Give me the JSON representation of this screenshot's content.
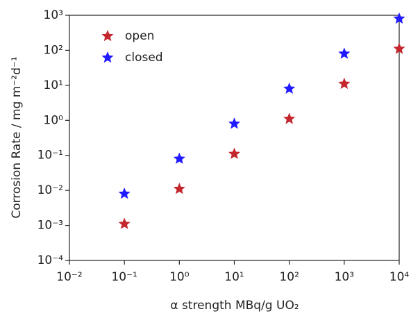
{
  "chart_data": {
    "type": "scatter",
    "xlabel": "α strength  MBq/g UO₂",
    "ylabel": "Corrosion Rate / mg m⁻²d⁻¹",
    "xscale": "log",
    "yscale": "log",
    "xlim": [
      0.01,
      10000
    ],
    "ylim": [
      0.0001,
      1000
    ],
    "xticks": [
      {
        "value": 0.01,
        "label": "10⁻²"
      },
      {
        "value": 0.1,
        "label": "10⁻¹"
      },
      {
        "value": 1,
        "label": "10⁰"
      },
      {
        "value": 10,
        "label": "10¹"
      },
      {
        "value": 100,
        "label": "10²"
      },
      {
        "value": 1000,
        "label": "10³"
      },
      {
        "value": 10000,
        "label": "10⁴"
      }
    ],
    "yticks": [
      {
        "value": 0.0001,
        "label": "10⁻⁴"
      },
      {
        "value": 0.001,
        "label": "10⁻³"
      },
      {
        "value": 0.01,
        "label": "10⁻²"
      },
      {
        "value": 0.1,
        "label": "10⁻¹"
      },
      {
        "value": 1,
        "label": "10⁰"
      },
      {
        "value": 10,
        "label": "10¹"
      },
      {
        "value": 100,
        "label": "10²"
      },
      {
        "value": 1000,
        "label": "10³"
      }
    ],
    "legend": "upper left",
    "series": [
      {
        "name": "open",
        "color": "#c4262e",
        "x": [
          0.1,
          1,
          10,
          100,
          1000,
          10000
        ],
        "values": [
          0.0011,
          0.011,
          0.11,
          1.1,
          11,
          110
        ]
      },
      {
        "name": "closed",
        "color": "#1f1aff",
        "x": [
          0.1,
          1,
          10,
          100,
          1000,
          10000
        ],
        "values": [
          0.008,
          0.08,
          0.8,
          8,
          80,
          800
        ]
      }
    ]
  }
}
